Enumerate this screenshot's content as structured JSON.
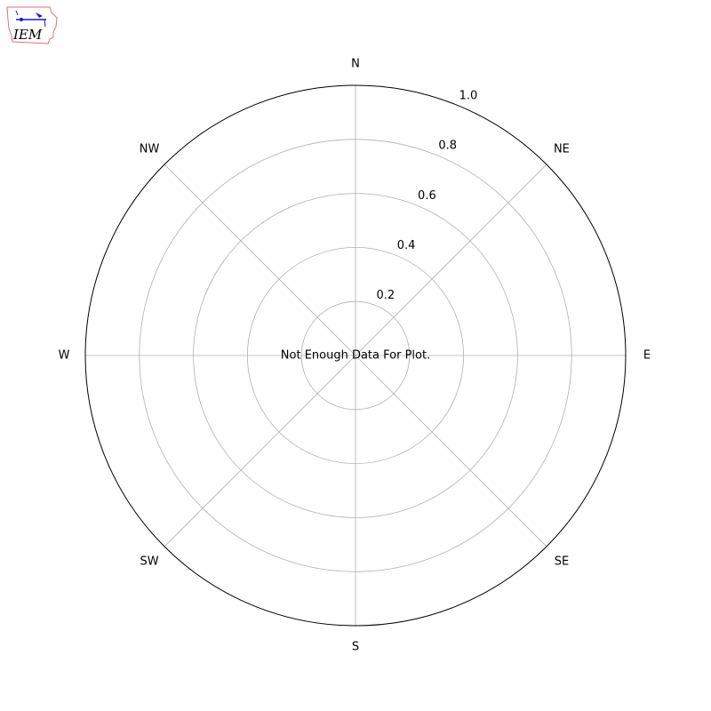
{
  "logo": {
    "text": "IEM",
    "text_color": "#cc2222",
    "outline_color": "#e07070",
    "symbol_color": "#1a1acc"
  },
  "chart_data": {
    "type": "polar",
    "title": "",
    "direction_labels": [
      "N",
      "NE",
      "E",
      "SE",
      "S",
      "SW",
      "W",
      "NW"
    ],
    "radial_ticks": [
      0.2,
      0.4,
      0.6,
      0.8,
      1.0
    ],
    "radial_tick_labels": [
      "0.2",
      "0.4",
      "0.6",
      "0.8",
      "1.0"
    ],
    "rlim": [
      0,
      1.0
    ],
    "grid": true,
    "grid_color": "#b0b0b0",
    "annotation": "Not Enough Data For Plot.",
    "series": []
  }
}
